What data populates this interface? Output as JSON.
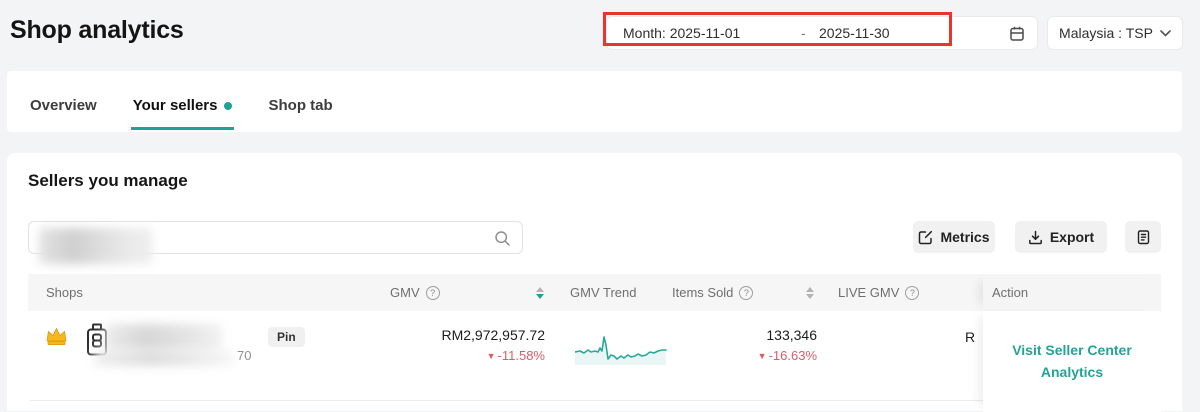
{
  "header": {
    "title": "Shop analytics",
    "date_range": {
      "label_and_start": "Month: 2025-11-01",
      "separator": "-",
      "end": "2025-11-30"
    },
    "region_selector": "Malaysia : TSP"
  },
  "tabs": [
    {
      "label": "Overview"
    },
    {
      "label": "Your sellers"
    },
    {
      "label": "Shop tab"
    }
  ],
  "panel": {
    "heading": "Sellers you manage",
    "toolbar": {
      "metrics_label": "Metrics",
      "export_label": "Export"
    }
  },
  "table": {
    "columns": {
      "shops": "Shops",
      "gmv": "GMV",
      "gmv_trend": "GMV Trend",
      "items_sold": "Items Sold",
      "live_gmv": "LIVE GMV",
      "action": "Action"
    },
    "rows": [
      {
        "pin_label": "Pin",
        "shop_meta": "70",
        "gmv": {
          "value": "RM2,972,957.72",
          "change": "-11.58%"
        },
        "items_sold": {
          "value": "133,346",
          "change": "-16.63%"
        },
        "live_gmv_visible": "R",
        "action_link": "Visit Seller Center Analytics",
        "trend_points": [
          [
            0,
            19
          ],
          [
            5,
            18
          ],
          [
            9,
            20
          ],
          [
            13,
            17
          ],
          [
            16,
            19
          ],
          [
            20,
            18
          ],
          [
            23,
            19
          ],
          [
            25,
            15
          ],
          [
            27,
            18
          ],
          [
            29,
            4
          ],
          [
            31,
            12
          ],
          [
            33,
            26
          ],
          [
            36,
            22
          ],
          [
            39,
            23
          ],
          [
            42,
            26
          ],
          [
            46,
            23
          ],
          [
            49,
            25
          ],
          [
            53,
            22
          ],
          [
            56,
            24
          ],
          [
            60,
            23
          ],
          [
            63,
            21
          ],
          [
            67,
            23
          ],
          [
            71,
            22
          ],
          [
            75,
            19
          ],
          [
            79,
            20
          ],
          [
            83,
            18
          ],
          [
            87,
            17
          ],
          [
            91,
            17
          ]
        ]
      }
    ]
  },
  "icons": {
    "help_glyph": "?",
    "down_triangle": "▼"
  },
  "colors": {
    "teal": "#1fa294",
    "change_red": "#e05a69",
    "annotation_red": "#e8362f"
  }
}
